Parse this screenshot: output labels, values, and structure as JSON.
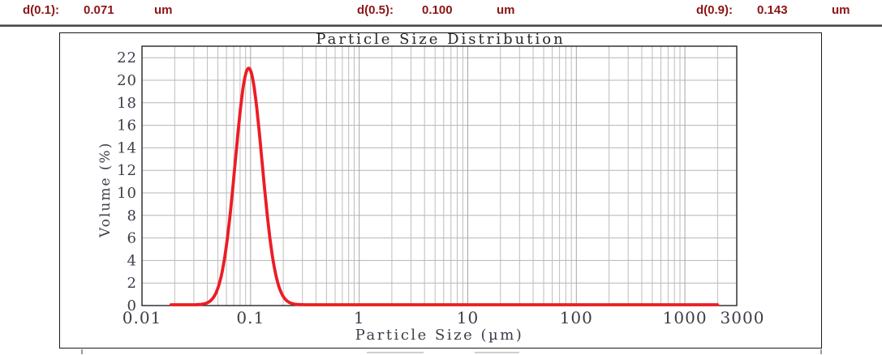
{
  "header": {
    "text_color": "#8b1515",
    "stats": [
      {
        "label": "d(0.1):",
        "value": "0.071",
        "unit": "um"
      },
      {
        "label": "d(0.5):",
        "value": "0.100",
        "unit": "um"
      },
      {
        "label": "d(0.9):",
        "value": "0.143",
        "unit": "um"
      }
    ]
  },
  "chart_data": {
    "type": "line",
    "title": "Particle Size Distribution",
    "xlabel": "Particle Size (µm)",
    "ylabel": "Volume (%)",
    "x_scale": "log",
    "x_range_um": [
      0.01,
      3000
    ],
    "x_tick_values": [
      0.01,
      0.1,
      1,
      10,
      100,
      1000,
      3000
    ],
    "x_tick_labels": [
      "0.01",
      "0.1",
      "1",
      "10",
      "100",
      "1000",
      "3000"
    ],
    "y_range": [
      0,
      22
    ],
    "y_tick_labels": [
      "0",
      "2",
      "4",
      "6",
      "8",
      "10",
      "12",
      "14",
      "16",
      "18",
      "20",
      "22"
    ],
    "grid": true,
    "grid_color_minor": "#bdbdbd",
    "grid_color_major": "#a6a6a6",
    "box_color": "#141414",
    "tick_label_color": "#3d3d4a",
    "series": [
      {
        "name": "volume-distribution",
        "color": "#ed1c24",
        "curve": {
          "shape": "lognormal",
          "amplitude_pct": 21,
          "peak_um": 0.096,
          "sigma_log10": 0.123,
          "baseline_start_um": 0.0185,
          "baseline_end_um": 2000
        },
        "points": [
          [
            0.02,
            0
          ],
          [
            0.04,
            0.2
          ],
          [
            0.05,
            1.5
          ],
          [
            0.06,
            5.3
          ],
          [
            0.07,
            11.3
          ],
          [
            0.08,
            17.1
          ],
          [
            0.09,
            20.5
          ],
          [
            0.096,
            21.0
          ],
          [
            0.1,
            20.8
          ],
          [
            0.11,
            18.7
          ],
          [
            0.12,
            15.4
          ],
          [
            0.14,
            8.7
          ],
          [
            0.16,
            4.1
          ],
          [
            0.18,
            1.8
          ],
          [
            0.2,
            0.7
          ],
          [
            0.25,
            0.1
          ],
          [
            0.3,
            0
          ],
          [
            1,
            0
          ],
          [
            10,
            0
          ],
          [
            100,
            0
          ],
          [
            1000,
            0
          ],
          [
            2000,
            0
          ]
        ]
      }
    ]
  }
}
